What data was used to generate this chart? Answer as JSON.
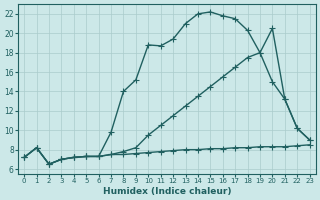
{
  "xlabel": "Humidex (Indice chaleur)",
  "ylabel": "",
  "xlim": [
    -0.5,
    23.5
  ],
  "ylim": [
    5.5,
    23.0
  ],
  "xticks": [
    0,
    1,
    2,
    3,
    4,
    5,
    6,
    7,
    8,
    9,
    10,
    11,
    12,
    13,
    14,
    15,
    16,
    17,
    18,
    19,
    20,
    21,
    22,
    23
  ],
  "yticks": [
    6,
    8,
    10,
    12,
    14,
    16,
    18,
    20,
    22
  ],
  "bg_color": "#cce8e8",
  "line_color": "#206060",
  "grid_color": "#aacccc",
  "line1_x": [
    0,
    1,
    2,
    3,
    4,
    5,
    6,
    7,
    8,
    9,
    10,
    11,
    12,
    13,
    14,
    15,
    16,
    17,
    18,
    19,
    20,
    21,
    22,
    23
  ],
  "line1_y": [
    7.2,
    8.2,
    6.5,
    7.0,
    7.2,
    7.3,
    7.3,
    9.8,
    14.0,
    15.2,
    18.8,
    18.7,
    19.4,
    21.0,
    22.0,
    22.2,
    21.8,
    21.5,
    20.3,
    18.0,
    20.5,
    13.2,
    10.2,
    9.0
  ],
  "line2_x": [
    0,
    1,
    2,
    3,
    4,
    5,
    6,
    7,
    8,
    9,
    10,
    11,
    12,
    13,
    14,
    15,
    16,
    17,
    18,
    19,
    20,
    21,
    22,
    23
  ],
  "line2_y": [
    7.2,
    8.2,
    6.5,
    7.0,
    7.2,
    7.3,
    7.3,
    7.5,
    7.8,
    8.2,
    9.5,
    10.5,
    11.5,
    12.5,
    13.5,
    14.5,
    15.5,
    16.5,
    17.5,
    18.0,
    15.0,
    13.2,
    10.2,
    9.0
  ],
  "line3_x": [
    0,
    1,
    2,
    3,
    4,
    5,
    6,
    7,
    8,
    9,
    10,
    11,
    12,
    13,
    14,
    15,
    16,
    17,
    18,
    19,
    20,
    21,
    22,
    23
  ],
  "line3_y": [
    7.2,
    8.2,
    6.5,
    7.0,
    7.2,
    7.3,
    7.3,
    7.5,
    7.5,
    7.6,
    7.7,
    7.8,
    7.9,
    8.0,
    8.0,
    8.1,
    8.1,
    8.2,
    8.2,
    8.3,
    8.3,
    8.3,
    8.4,
    8.5
  ],
  "marker": "+",
  "markersize": 4,
  "linewidth": 1.0
}
